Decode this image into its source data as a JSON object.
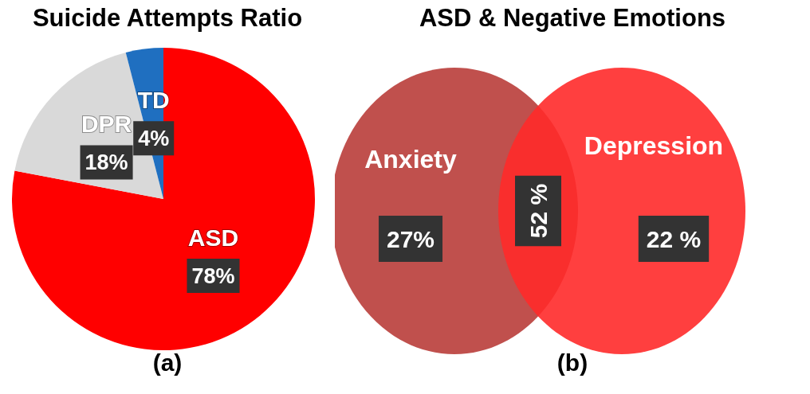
{
  "chart_data": [
    {
      "type": "pie",
      "title": "Suicide Attempts Ratio",
      "categories": [
        "ASD",
        "DPR",
        "TD"
      ],
      "values": [
        78,
        18,
        4
      ],
      "value_labels": [
        "78%",
        "18%",
        "4%"
      ],
      "colors": [
        "#ff0000",
        "#d9d9d9",
        "#1f6fc0"
      ],
      "annotations": [
        "(a)"
      ]
    },
    {
      "type": "other",
      "title": "ASD & Negative Emotions",
      "categories": [
        "Anxiety",
        "Depression"
      ],
      "colors": [
        "#c0504d",
        "#ff2a2a"
      ],
      "annotations": [
        "27%",
        "52 %",
        "22 %",
        "(b)"
      ]
    }
  ]
}
